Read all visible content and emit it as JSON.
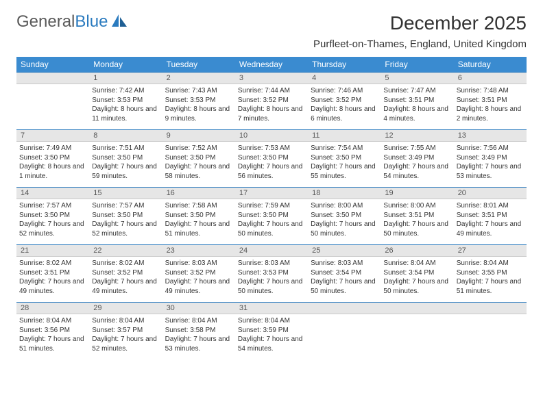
{
  "logo": {
    "text1": "General",
    "text2": "Blue"
  },
  "title": "December 2025",
  "location": "Purfleet-on-Thames, England, United Kingdom",
  "colors": {
    "header_bg": "#3a8bd0",
    "header_text": "#ffffff",
    "daybar_bg": "#e6e6e6",
    "daybar_border_top": "#2b7bbf",
    "logo_gray": "#5a5a5a",
    "logo_blue": "#2b7bbf"
  },
  "weekdays": [
    "Sunday",
    "Monday",
    "Tuesday",
    "Wednesday",
    "Thursday",
    "Friday",
    "Saturday"
  ],
  "weeks": [
    [
      {
        "n": "",
        "sr": "",
        "ss": "",
        "dl": ""
      },
      {
        "n": "1",
        "sr": "Sunrise: 7:42 AM",
        "ss": "Sunset: 3:53 PM",
        "dl": "Daylight: 8 hours and 11 minutes."
      },
      {
        "n": "2",
        "sr": "Sunrise: 7:43 AM",
        "ss": "Sunset: 3:53 PM",
        "dl": "Daylight: 8 hours and 9 minutes."
      },
      {
        "n": "3",
        "sr": "Sunrise: 7:44 AM",
        "ss": "Sunset: 3:52 PM",
        "dl": "Daylight: 8 hours and 7 minutes."
      },
      {
        "n": "4",
        "sr": "Sunrise: 7:46 AM",
        "ss": "Sunset: 3:52 PM",
        "dl": "Daylight: 8 hours and 6 minutes."
      },
      {
        "n": "5",
        "sr": "Sunrise: 7:47 AM",
        "ss": "Sunset: 3:51 PM",
        "dl": "Daylight: 8 hours and 4 minutes."
      },
      {
        "n": "6",
        "sr": "Sunrise: 7:48 AM",
        "ss": "Sunset: 3:51 PM",
        "dl": "Daylight: 8 hours and 2 minutes."
      }
    ],
    [
      {
        "n": "7",
        "sr": "Sunrise: 7:49 AM",
        "ss": "Sunset: 3:50 PM",
        "dl": "Daylight: 8 hours and 1 minute."
      },
      {
        "n": "8",
        "sr": "Sunrise: 7:51 AM",
        "ss": "Sunset: 3:50 PM",
        "dl": "Daylight: 7 hours and 59 minutes."
      },
      {
        "n": "9",
        "sr": "Sunrise: 7:52 AM",
        "ss": "Sunset: 3:50 PM",
        "dl": "Daylight: 7 hours and 58 minutes."
      },
      {
        "n": "10",
        "sr": "Sunrise: 7:53 AM",
        "ss": "Sunset: 3:50 PM",
        "dl": "Daylight: 7 hours and 56 minutes."
      },
      {
        "n": "11",
        "sr": "Sunrise: 7:54 AM",
        "ss": "Sunset: 3:50 PM",
        "dl": "Daylight: 7 hours and 55 minutes."
      },
      {
        "n": "12",
        "sr": "Sunrise: 7:55 AM",
        "ss": "Sunset: 3:49 PM",
        "dl": "Daylight: 7 hours and 54 minutes."
      },
      {
        "n": "13",
        "sr": "Sunrise: 7:56 AM",
        "ss": "Sunset: 3:49 PM",
        "dl": "Daylight: 7 hours and 53 minutes."
      }
    ],
    [
      {
        "n": "14",
        "sr": "Sunrise: 7:57 AM",
        "ss": "Sunset: 3:50 PM",
        "dl": "Daylight: 7 hours and 52 minutes."
      },
      {
        "n": "15",
        "sr": "Sunrise: 7:57 AM",
        "ss": "Sunset: 3:50 PM",
        "dl": "Daylight: 7 hours and 52 minutes."
      },
      {
        "n": "16",
        "sr": "Sunrise: 7:58 AM",
        "ss": "Sunset: 3:50 PM",
        "dl": "Daylight: 7 hours and 51 minutes."
      },
      {
        "n": "17",
        "sr": "Sunrise: 7:59 AM",
        "ss": "Sunset: 3:50 PM",
        "dl": "Daylight: 7 hours and 50 minutes."
      },
      {
        "n": "18",
        "sr": "Sunrise: 8:00 AM",
        "ss": "Sunset: 3:50 PM",
        "dl": "Daylight: 7 hours and 50 minutes."
      },
      {
        "n": "19",
        "sr": "Sunrise: 8:00 AM",
        "ss": "Sunset: 3:51 PM",
        "dl": "Daylight: 7 hours and 50 minutes."
      },
      {
        "n": "20",
        "sr": "Sunrise: 8:01 AM",
        "ss": "Sunset: 3:51 PM",
        "dl": "Daylight: 7 hours and 49 minutes."
      }
    ],
    [
      {
        "n": "21",
        "sr": "Sunrise: 8:02 AM",
        "ss": "Sunset: 3:51 PM",
        "dl": "Daylight: 7 hours and 49 minutes."
      },
      {
        "n": "22",
        "sr": "Sunrise: 8:02 AM",
        "ss": "Sunset: 3:52 PM",
        "dl": "Daylight: 7 hours and 49 minutes."
      },
      {
        "n": "23",
        "sr": "Sunrise: 8:03 AM",
        "ss": "Sunset: 3:52 PM",
        "dl": "Daylight: 7 hours and 49 minutes."
      },
      {
        "n": "24",
        "sr": "Sunrise: 8:03 AM",
        "ss": "Sunset: 3:53 PM",
        "dl": "Daylight: 7 hours and 50 minutes."
      },
      {
        "n": "25",
        "sr": "Sunrise: 8:03 AM",
        "ss": "Sunset: 3:54 PM",
        "dl": "Daylight: 7 hours and 50 minutes."
      },
      {
        "n": "26",
        "sr": "Sunrise: 8:04 AM",
        "ss": "Sunset: 3:54 PM",
        "dl": "Daylight: 7 hours and 50 minutes."
      },
      {
        "n": "27",
        "sr": "Sunrise: 8:04 AM",
        "ss": "Sunset: 3:55 PM",
        "dl": "Daylight: 7 hours and 51 minutes."
      }
    ],
    [
      {
        "n": "28",
        "sr": "Sunrise: 8:04 AM",
        "ss": "Sunset: 3:56 PM",
        "dl": "Daylight: 7 hours and 51 minutes."
      },
      {
        "n": "29",
        "sr": "Sunrise: 8:04 AM",
        "ss": "Sunset: 3:57 PM",
        "dl": "Daylight: 7 hours and 52 minutes."
      },
      {
        "n": "30",
        "sr": "Sunrise: 8:04 AM",
        "ss": "Sunset: 3:58 PM",
        "dl": "Daylight: 7 hours and 53 minutes."
      },
      {
        "n": "31",
        "sr": "Sunrise: 8:04 AM",
        "ss": "Sunset: 3:59 PM",
        "dl": "Daylight: 7 hours and 54 minutes."
      },
      {
        "n": "",
        "sr": "",
        "ss": "",
        "dl": ""
      },
      {
        "n": "",
        "sr": "",
        "ss": "",
        "dl": ""
      },
      {
        "n": "",
        "sr": "",
        "ss": "",
        "dl": ""
      }
    ]
  ]
}
